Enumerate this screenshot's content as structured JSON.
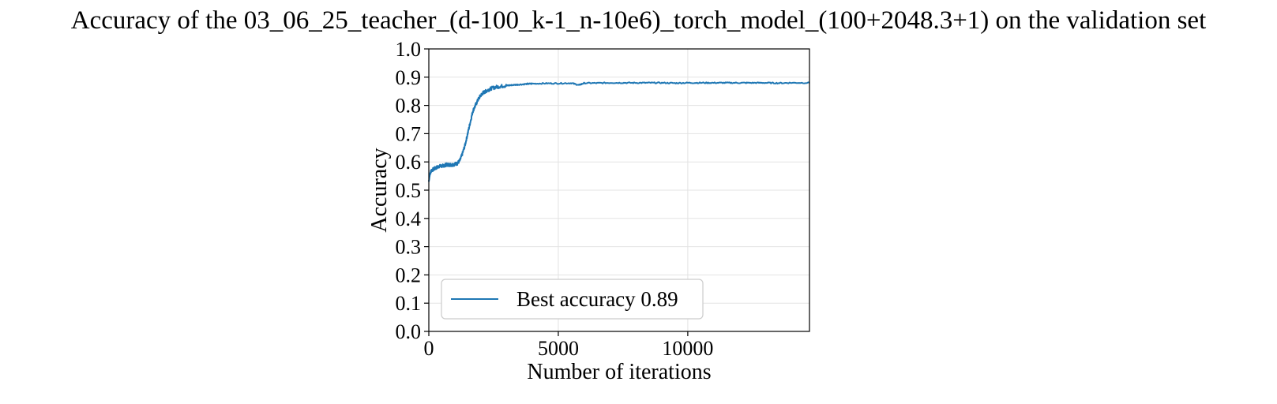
{
  "chart_data": {
    "type": "line",
    "title": "Accuracy of the 03_06_25_teacher_(d-100_k-1_n-10e6)_torch_model_(100+2048.3+1) on the validation set",
    "xlabel": "Number of iterations",
    "ylabel": "Accuracy",
    "xlim": [
      0,
      14700
    ],
    "ylim": [
      0.0,
      1.0
    ],
    "xticks": [
      0,
      5000,
      10000
    ],
    "xtick_labels": [
      "0",
      "5000",
      "10000"
    ],
    "yticks": [
      0.0,
      0.1,
      0.2,
      0.3,
      0.4,
      0.5,
      0.6,
      0.7,
      0.8,
      0.9,
      1.0
    ],
    "ytick_labels": [
      "0.0",
      "0.1",
      "0.2",
      "0.3",
      "0.4",
      "0.5",
      "0.6",
      "0.7",
      "0.8",
      "0.9",
      "1.0"
    ],
    "grid": true,
    "legend_position": "lower-left",
    "series": [
      {
        "name": "Best accuracy 0.89",
        "color": "#1f77b4",
        "x": [
          0,
          50,
          100,
          200,
          300,
          400,
          500,
          600,
          700,
          800,
          900,
          1000,
          1100,
          1200,
          1300,
          1400,
          1500,
          1600,
          1700,
          1800,
          1900,
          2000,
          2100,
          2200,
          2300,
          2400,
          2600,
          2800,
          3000,
          3200,
          3500,
          3800,
          4000,
          4500,
          5000,
          5500,
          5800,
          6000,
          6500,
          7000,
          7500,
          8000,
          8500,
          9000,
          9500,
          10000,
          10500,
          11000,
          11500,
          12000,
          12500,
          13000,
          13500,
          14000,
          14700
        ],
        "y": [
          0.53,
          0.56,
          0.57,
          0.575,
          0.58,
          0.585,
          0.585,
          0.588,
          0.59,
          0.59,
          0.59,
          0.592,
          0.595,
          0.605,
          0.63,
          0.66,
          0.7,
          0.74,
          0.78,
          0.8,
          0.82,
          0.835,
          0.845,
          0.85,
          0.855,
          0.86,
          0.865,
          0.868,
          0.87,
          0.872,
          0.874,
          0.876,
          0.877,
          0.878,
          0.878,
          0.879,
          0.872,
          0.879,
          0.879,
          0.88,
          0.88,
          0.88,
          0.88,
          0.88,
          0.879,
          0.88,
          0.88,
          0.88,
          0.88,
          0.88,
          0.88,
          0.88,
          0.879,
          0.88,
          0.88
        ]
      }
    ]
  }
}
